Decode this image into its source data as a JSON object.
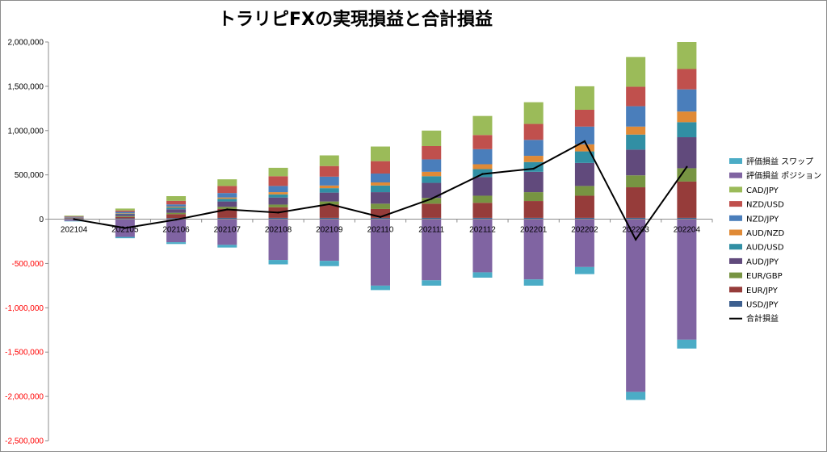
{
  "chart_data": {
    "type": "bar",
    "title": "トラリピFXの実現損益と合計損益",
    "ylim": [
      -2500000,
      2000000
    ],
    "y_ticks": [
      "2,000,000",
      "1,500,000",
      "1,000,000",
      "500,000",
      "0",
      "-500,000",
      "-1,000,000",
      "-1,500,000",
      "-2,000,000",
      "-2,500,000"
    ],
    "categories": [
      "202104",
      "202105",
      "202106",
      "202107",
      "202108",
      "202109",
      "202110",
      "202111",
      "202112",
      "202201",
      "202202",
      "202203",
      "202204"
    ],
    "series": [
      {
        "name": "USD/JPY",
        "color": "#3d5f8f",
        "values": [
          3000,
          10000,
          12000,
          15000,
          15000,
          15000,
          15000,
          15000,
          15000,
          15000,
          15000,
          15000,
          15000
        ]
      },
      {
        "name": "EUR/JPY",
        "color": "#963c3a",
        "values": [
          5000,
          15000,
          45000,
          100000,
          120000,
          150000,
          100000,
          160000,
          170000,
          190000,
          250000,
          345000,
          410000
        ]
      },
      {
        "name": "EUR/GBP",
        "color": "#779442",
        "values": [
          2000,
          10000,
          15000,
          25000,
          30000,
          35000,
          60000,
          65000,
          80000,
          100000,
          110000,
          135000,
          150000
        ]
      },
      {
        "name": "AUD/JPY",
        "color": "#614a7c",
        "values": [
          8000,
          20000,
          40000,
          60000,
          80000,
          100000,
          130000,
          170000,
          210000,
          230000,
          260000,
          290000,
          350000
        ]
      },
      {
        "name": "AUD/USD",
        "color": "#318fa4",
        "values": [
          2000,
          8000,
          20000,
          30000,
          35000,
          50000,
          75000,
          75000,
          90000,
          110000,
          130000,
          170000,
          170000
        ]
      },
      {
        "name": "AUD/NZD",
        "color": "#e08a36",
        "values": [
          2000,
          5000,
          10000,
          15000,
          25000,
          30000,
          35000,
          50000,
          55000,
          70000,
          80000,
          90000,
          120000
        ]
      },
      {
        "name": "NZD/JPY",
        "color": "#4a7ebb",
        "values": [
          5000,
          15000,
          25000,
          50000,
          70000,
          100000,
          100000,
          140000,
          170000,
          180000,
          200000,
          230000,
          250000
        ]
      },
      {
        "name": "NZD/USD",
        "color": "#c0504d",
        "values": [
          5000,
          15000,
          40000,
          80000,
          110000,
          120000,
          140000,
          150000,
          160000,
          180000,
          190000,
          220000,
          230000
        ]
      },
      {
        "name": "CAD/JPY",
        "color": "#9bbb59",
        "values": [
          8000,
          22000,
          53000,
          75000,
          95000,
          120000,
          165000,
          175000,
          215000,
          245000,
          265000,
          335000,
          305000
        ]
      },
      {
        "name": "評価損益 ポジション",
        "color": "#8064a2",
        "values": [
          -20000,
          -200000,
          -260000,
          -290000,
          -460000,
          -470000,
          -750000,
          -690000,
          -600000,
          -680000,
          -540000,
          -1950000,
          -1360000
        ]
      },
      {
        "name": "評価損益 スワップ",
        "color": "#4bacc6",
        "values": [
          -5000,
          -15000,
          -20000,
          -30000,
          -50000,
          -60000,
          -50000,
          -60000,
          -60000,
          -70000,
          -80000,
          -90000,
          -100000
        ]
      }
    ],
    "line": {
      "name": "合計損益",
      "color": "#000000",
      "values": [
        0,
        -100000,
        -5000,
        110000,
        75000,
        170000,
        25000,
        230000,
        510000,
        570000,
        880000,
        -230000,
        590000
      ]
    },
    "legend_order": [
      "評価損益 スワップ",
      "評価損益 ポジション",
      "CAD/JPY",
      "NZD/USD",
      "NZD/JPY",
      "AUD/NZD",
      "AUD/USD",
      "AUD/JPY",
      "EUR/GBP",
      "EUR/JPY",
      "USD/JPY",
      "合計損益"
    ],
    "legend_position": "right",
    "grid": true
  }
}
